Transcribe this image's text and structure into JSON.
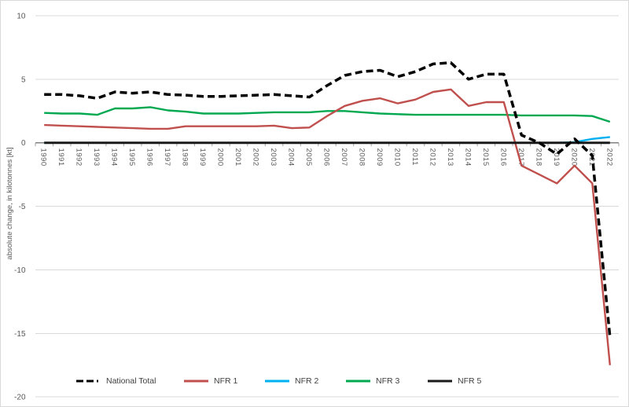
{
  "chart_data": {
    "type": "line",
    "title": "",
    "ylabel": "absolute change, in kilotonnes [kt]",
    "xlabel": "",
    "ylim": [
      -20,
      10
    ],
    "y_ticks": [
      10,
      5,
      0,
      -5,
      -10,
      -15,
      -20
    ],
    "grid": true,
    "legend_position": "bottom",
    "x": [
      "1990",
      "1991",
      "1992",
      "1993",
      "1994",
      "1995",
      "1996",
      "1997",
      "1998",
      "1999",
      "2000",
      "2001",
      "2002",
      "2003",
      "2004",
      "2005",
      "2006",
      "2007",
      "2008",
      "2009",
      "2010",
      "2011",
      "2012",
      "2013",
      "2014",
      "2015",
      "2016",
      "2017",
      "2018",
      "2019",
      "2020",
      "2021",
      "2022"
    ],
    "series": [
      {
        "name": "National Total",
        "color": "#000000",
        "dashed": true,
        "values": [
          3.8,
          3.8,
          3.7,
          3.5,
          4.0,
          3.9,
          4.0,
          3.8,
          3.75,
          3.65,
          3.65,
          3.7,
          3.75,
          3.8,
          3.7,
          3.6,
          4.5,
          5.3,
          5.6,
          5.7,
          5.2,
          5.6,
          6.2,
          6.3,
          5.0,
          5.4,
          5.4,
          0.6,
          0.0,
          -0.9,
          0.3,
          -1.0,
          -15.3
        ]
      },
      {
        "name": "NFR 1",
        "color": "#c0504d",
        "dashed": false,
        "values": [
          1.4,
          1.35,
          1.3,
          1.25,
          1.2,
          1.15,
          1.1,
          1.1,
          1.3,
          1.3,
          1.3,
          1.3,
          1.3,
          1.35,
          1.15,
          1.2,
          2.1,
          2.9,
          3.3,
          3.5,
          3.1,
          3.4,
          4.0,
          4.2,
          2.9,
          3.2,
          3.2,
          -1.8,
          -2.5,
          -3.2,
          -1.8,
          -3.2,
          -17.5
        ]
      },
      {
        "name": "NFR 2",
        "color": "#00b0f0",
        "dashed": false,
        "values": [
          0,
          0,
          0,
          0,
          0,
          0,
          0,
          0,
          0,
          0,
          0,
          0,
          0,
          0,
          0,
          0,
          0,
          0,
          0,
          0,
          0,
          0,
          0,
          0,
          0,
          0,
          0,
          0,
          0,
          0,
          0.05,
          0.3,
          0.45
        ]
      },
      {
        "name": "NFR 3",
        "color": "#00a84f",
        "dashed": false,
        "values": [
          2.35,
          2.3,
          2.3,
          2.2,
          2.7,
          2.7,
          2.8,
          2.55,
          2.45,
          2.3,
          2.3,
          2.3,
          2.35,
          2.4,
          2.4,
          2.4,
          2.5,
          2.5,
          2.4,
          2.3,
          2.25,
          2.2,
          2.2,
          2.2,
          2.2,
          2.2,
          2.2,
          2.15,
          2.15,
          2.15,
          2.15,
          2.1,
          1.65
        ]
      },
      {
        "name": "NFR 5",
        "color": "#1a1a1a",
        "dashed": false,
        "values": [
          0,
          0,
          0,
          0,
          0,
          0,
          0,
          0,
          0,
          0,
          0,
          0,
          0,
          0,
          0,
          0,
          0,
          0,
          0,
          0,
          0,
          0,
          0,
          0,
          0,
          0,
          0,
          0,
          0,
          0,
          0,
          0,
          0
        ]
      }
    ],
    "style": {
      "gridline_color": "#d9d9d9",
      "axis_line_color": "#808080",
      "tick_color": "#a6a6a6",
      "tick_label_color": "#595959",
      "legend_text_color": "#404040",
      "background": "#ffffff",
      "border_color": "#d9d9d9"
    }
  }
}
